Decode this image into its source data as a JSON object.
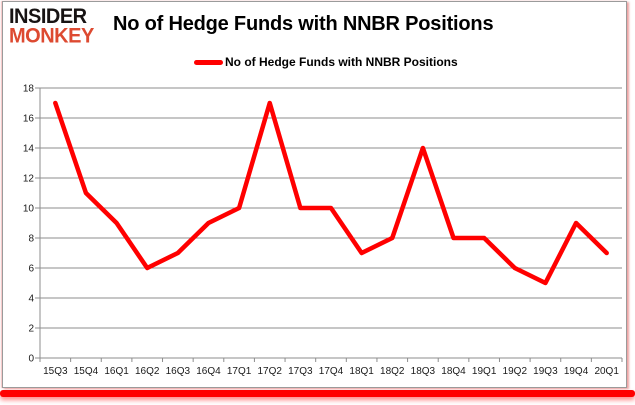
{
  "brand": {
    "line1": "INSIDER",
    "line2": "MONKEY"
  },
  "header": {
    "title": "No of Hedge Funds with NNBR Positions"
  },
  "legend": {
    "label": "No of Hedge Funds with NNBR Positions"
  },
  "colors": {
    "line": "#FF0000",
    "logo_red": "#DD4A31",
    "grid": "#8d8d8d",
    "axis_text": "#1a1a1a",
    "bottom_bar": "#FF0000"
  },
  "chart_data": {
    "type": "line",
    "title": "No of Hedge Funds with NNBR Positions",
    "categories": [
      "15Q3",
      "15Q4",
      "16Q1",
      "16Q2",
      "16Q3",
      "16Q4",
      "17Q1",
      "17Q2",
      "17Q3",
      "17Q4",
      "18Q1",
      "18Q2",
      "18Q3",
      "18Q4",
      "19Q1",
      "19Q2",
      "19Q3",
      "19Q4",
      "20Q1"
    ],
    "series": [
      {
        "name": "No of Hedge Funds with NNBR Positions",
        "values": [
          17,
          11,
          9,
          6,
          7,
          9,
          10,
          17,
          10,
          10,
          7,
          8,
          14,
          8,
          8,
          6,
          5,
          9,
          7
        ]
      }
    ],
    "xlabel": "",
    "ylabel": "",
    "ylim": [
      0,
      18
    ],
    "ytick_step": 2,
    "yticks": [
      0,
      2,
      4,
      6,
      8,
      10,
      12,
      14,
      16,
      18
    ],
    "grid": true,
    "legend_position": "top"
  }
}
